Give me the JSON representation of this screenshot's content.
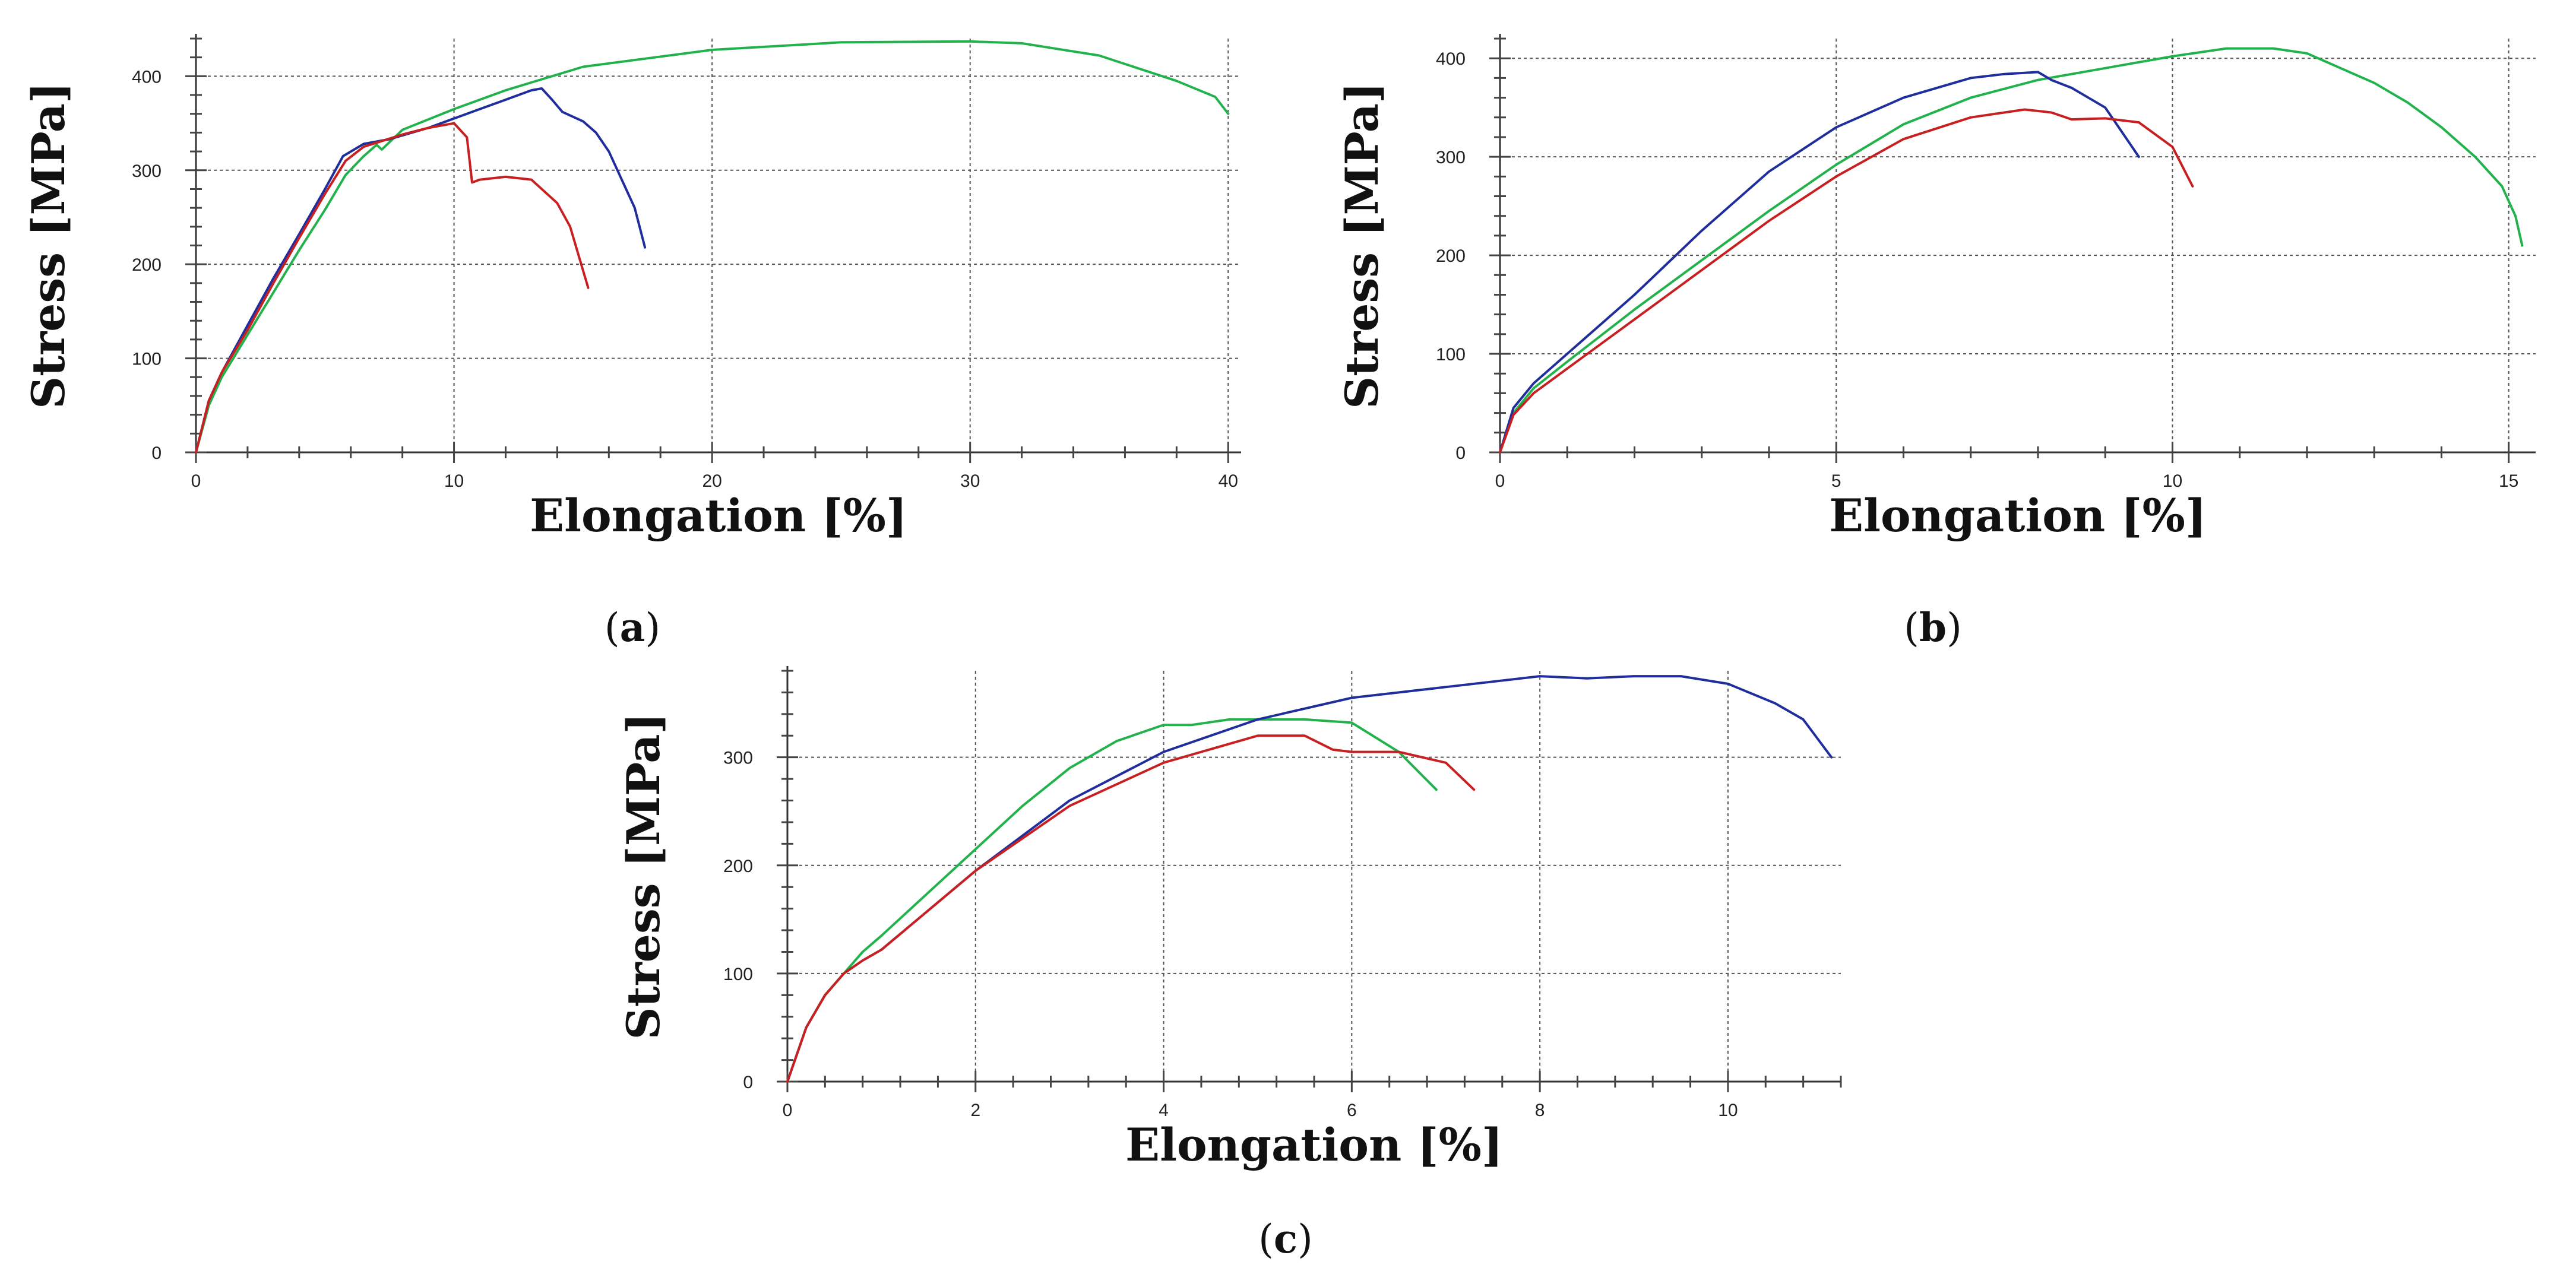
{
  "chart_data": [
    {
      "type": "line",
      "panel_label": "a",
      "xlabel": "Elongation [%]",
      "ylabel": "Stress [MPa]",
      "xlim": [
        0,
        40.5
      ],
      "ylim": [
        0,
        440
      ],
      "xticks": [
        0,
        10,
        20,
        30,
        40
      ],
      "yticks": [
        0,
        100,
        200,
        300,
        400
      ],
      "grid": true,
      "series": [
        {
          "name": "green",
          "color": "#22b24c",
          "x": [
            0,
            0.5,
            1,
            2,
            3,
            4,
            5,
            5.8,
            6.5,
            7.0,
            7.2,
            8,
            10,
            12,
            15,
            20,
            25,
            30,
            32,
            35,
            38,
            39.5,
            40.0
          ],
          "y": [
            0,
            50,
            80,
            125,
            170,
            215,
            258,
            295,
            315,
            327,
            322,
            343,
            365,
            385,
            410,
            428,
            436,
            437,
            435,
            422,
            395,
            378,
            360
          ]
        },
        {
          "name": "blue",
          "color": "#1f2e9c",
          "x": [
            0,
            0.5,
            1,
            2,
            3,
            4,
            5,
            5.7,
            6.5,
            7.5,
            9,
            10,
            11,
            12,
            13,
            13.4,
            13.8,
            14.2,
            15,
            15.5,
            16,
            16.5,
            17,
            17.4
          ],
          "y": [
            0,
            55,
            85,
            135,
            185,
            232,
            280,
            315,
            328,
            333,
            345,
            355,
            365,
            375,
            385,
            387,
            375,
            362,
            352,
            340,
            320,
            290,
            260,
            218
          ]
        },
        {
          "name": "red",
          "color": "#c82020",
          "x": [
            0,
            0.5,
            1,
            2,
            3,
            4,
            5,
            5.8,
            6.5,
            8,
            9,
            10,
            10.5,
            10.7,
            11,
            12,
            13,
            14,
            14.5,
            15.2
          ],
          "y": [
            0,
            55,
            85,
            130,
            180,
            228,
            275,
            310,
            325,
            338,
            345,
            350,
            335,
            287,
            290,
            293,
            290,
            265,
            240,
            175
          ]
        }
      ]
    },
    {
      "type": "line",
      "panel_label": "b",
      "xlabel": "Elongation [%]",
      "ylabel": "Stress [MPa]",
      "xlim": [
        0,
        15.4
      ],
      "ylim": [
        0,
        420
      ],
      "xticks": [
        0,
        5,
        10,
        15
      ],
      "yticks": [
        0,
        100,
        200,
        300,
        400
      ],
      "grid": true,
      "series": [
        {
          "name": "green",
          "color": "#22b24c",
          "x": [
            0,
            0.2,
            0.5,
            1,
            2,
            3,
            4,
            5,
            6,
            7,
            8,
            9,
            10,
            10.8,
            11.5,
            12,
            12.5,
            13,
            13.5,
            14,
            14.5,
            14.9,
            15.1,
            15.2
          ],
          "y": [
            0,
            40,
            65,
            92,
            145,
            195,
            245,
            292,
            333,
            360,
            378,
            390,
            402,
            410,
            410,
            405,
            390,
            375,
            355,
            330,
            300,
            270,
            240,
            210
          ]
        },
        {
          "name": "blue",
          "color": "#1f2e9c",
          "x": [
            0,
            0.2,
            0.5,
            1,
            2,
            3,
            4,
            5,
            6,
            7,
            7.5,
            8,
            8.2,
            8.5,
            9,
            9.2,
            9.5
          ],
          "y": [
            0,
            45,
            70,
            100,
            160,
            225,
            285,
            330,
            360,
            380,
            384,
            386,
            378,
            370,
            350,
            330,
            300
          ]
        },
        {
          "name": "red",
          "color": "#c82020",
          "x": [
            0,
            0.2,
            0.5,
            1,
            2,
            3,
            4,
            5,
            6,
            7,
            7.8,
            8.2,
            8.5,
            9,
            9.5,
            10,
            10.3
          ],
          "y": [
            0,
            38,
            60,
            85,
            135,
            185,
            235,
            280,
            318,
            340,
            348,
            345,
            338,
            339,
            335,
            310,
            270
          ]
        }
      ]
    },
    {
      "type": "line",
      "panel_label": "c",
      "xlabel": "Elongation [%]",
      "ylabel": "Stress [MPa]",
      "xlim": [
        0,
        11.2
      ],
      "ylim": [
        0,
        380
      ],
      "xticks": [
        0,
        2,
        4,
        6,
        8,
        10
      ],
      "yticks": [
        0,
        100,
        200,
        300
      ],
      "grid": true,
      "series": [
        {
          "name": "green",
          "color": "#22b24c",
          "x": [
            0,
            0.2,
            0.4,
            0.6,
            0.8,
            1.0,
            1.5,
            2,
            2.5,
            3,
            3.5,
            4,
            4.3,
            4.7,
            5,
            5.5,
            6,
            6.5,
            6.9
          ],
          "y": [
            0,
            50,
            80,
            100,
            120,
            135,
            175,
            215,
            255,
            290,
            315,
            330,
            330,
            335,
            335,
            335,
            332,
            305,
            270
          ]
        },
        {
          "name": "blue",
          "color": "#1f2e9c",
          "x": [
            0,
            0.2,
            0.4,
            0.6,
            0.8,
            1,
            2,
            3,
            4,
            5,
            6,
            7,
            8,
            8.5,
            9,
            9.5,
            10,
            10.5,
            10.8,
            11.1
          ],
          "y": [
            0,
            50,
            80,
            100,
            112,
            122,
            195,
            260,
            305,
            335,
            355,
            365,
            375,
            373,
            375,
            375,
            368,
            350,
            335,
            300
          ]
        },
        {
          "name": "red",
          "color": "#c82020",
          "x": [
            0,
            0.2,
            0.4,
            0.6,
            0.8,
            1,
            2,
            3,
            4,
            5,
            5.5,
            5.8,
            6,
            6.5,
            7,
            7.3
          ],
          "y": [
            0,
            50,
            80,
            100,
            112,
            122,
            195,
            255,
            295,
            320,
            320,
            307,
            305,
            305,
            295,
            270
          ]
        }
      ]
    }
  ]
}
